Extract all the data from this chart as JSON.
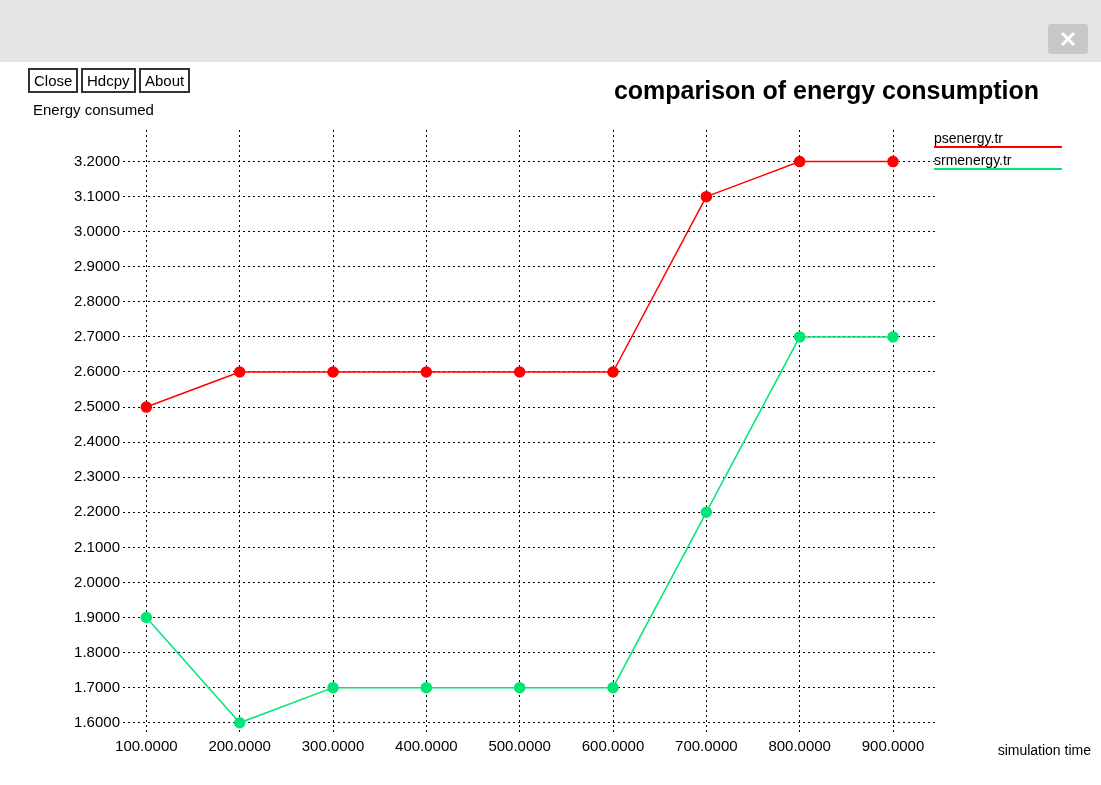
{
  "chart_data": {
    "type": "line",
    "title": "comparison of energy consumption",
    "xlabel": "simulation time",
    "ylabel": "Energy consumed",
    "annotations": [
      "Close",
      "Hdcpy",
      "About"
    ],
    "x": [
      100,
      200,
      300,
      400,
      500,
      600,
      700,
      800,
      900
    ],
    "series": [
      {
        "name": "psenergy.tr",
        "color": "#ff0000",
        "values": [
          2.5,
          2.6,
          2.6,
          2.6,
          2.6,
          2.6,
          3.1,
          3.2,
          3.2
        ]
      },
      {
        "name": "srmenergy.tr",
        "color": "#00e676",
        "values": [
          1.9,
          1.6,
          1.7,
          1.7,
          1.7,
          1.7,
          2.2,
          2.7,
          2.7
        ]
      }
    ],
    "xlim": [
      75,
      945
    ],
    "ylim": [
      1.565,
      3.29
    ],
    "xticks": [
      {
        "value": 100,
        "label": "100.0000"
      },
      {
        "value": 200,
        "label": "200.0000"
      },
      {
        "value": 300,
        "label": "300.0000"
      },
      {
        "value": 400,
        "label": "400.0000"
      },
      {
        "value": 500,
        "label": "500.0000"
      },
      {
        "value": 600,
        "label": "600.0000"
      },
      {
        "value": 700,
        "label": "700.0000"
      },
      {
        "value": 800,
        "label": "800.0000"
      },
      {
        "value": 900,
        "label": "900.0000"
      }
    ],
    "yticks": [
      {
        "value": 1.6,
        "label": "1.6000"
      },
      {
        "value": 1.7,
        "label": "1.7000"
      },
      {
        "value": 1.8,
        "label": "1.8000"
      },
      {
        "value": 1.9,
        "label": "1.9000"
      },
      {
        "value": 2.0,
        "label": "2.0000"
      },
      {
        "value": 2.1,
        "label": "2.1000"
      },
      {
        "value": 2.2,
        "label": "2.2000"
      },
      {
        "value": 2.3,
        "label": "2.3000"
      },
      {
        "value": 2.4,
        "label": "2.4000"
      },
      {
        "value": 2.5,
        "label": "2.5000"
      },
      {
        "value": 2.6,
        "label": "2.6000"
      },
      {
        "value": 2.7,
        "label": "2.7000"
      },
      {
        "value": 2.8,
        "label": "2.8000"
      },
      {
        "value": 2.9,
        "label": "2.9000"
      },
      {
        "value": 3.0,
        "label": "3.0000"
      },
      {
        "value": 3.1,
        "label": "3.1000"
      },
      {
        "value": 3.2,
        "label": "3.2000"
      }
    ],
    "grid": true,
    "legend": "top right",
    "marker": "circle",
    "line_style": "solid"
  }
}
